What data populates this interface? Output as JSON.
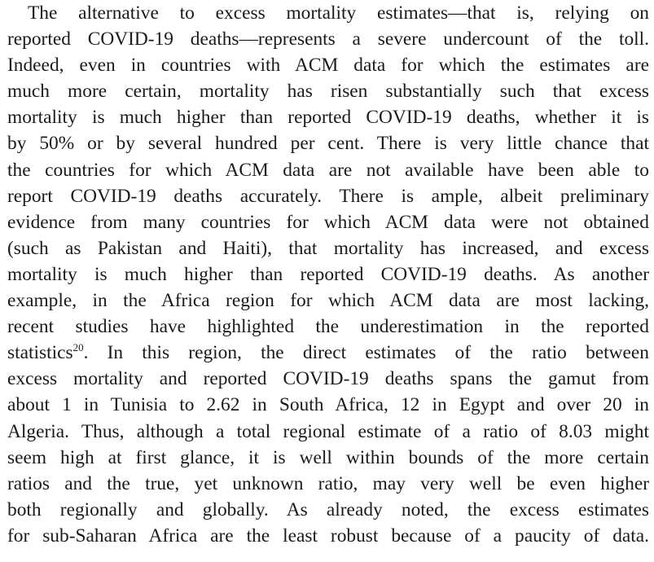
{
  "paragraph": {
    "lines": [
      "The alternative to excess mortality estimates—that is, relying on",
      "reported COVID-19 deaths—represents a severe undercount of the toll.",
      "Indeed, even in countries with ACM data for which the estimates are",
      "much more certain, mortality has risen substantially such that excess",
      "mortality is much higher than reported COVID-19 deaths, whether it is",
      "by 50% or by several hundred per cent. There is very little chance that",
      "the countries for which ACM data are not available have been able to",
      "report COVID-19 deaths accurately. There is ample, albeit preliminary",
      "evidence from many countries for which ACM data were not obtained",
      "(such as Pakistan and Haiti), that mortality has increased, and excess",
      "mortality is much higher than reported COVID-19 deaths. As another",
      "example, in the Africa region for which ACM data are most lacking,",
      "recent studies have highlighted the underestimation in the reported",
      "statistics",
      "20",
      ". In this region, the direct estimates of the ratio between",
      "excess mortality and reported COVID-19 deaths spans the gamut from",
      "about 1 in Tunisia to 2.62 in South Africa, 12 in Egypt and over 20 in",
      "Algeria. Thus, although a total regional estimate of a ratio of 8.03 might",
      "seem high at first glance, it is well within bounds of the more certain",
      "ratios and the true, yet unknown ratio, may very well be even higher",
      "both regionally and globally. As already noted, the excess estimates",
      "for sub-Saharan Africa are the least robust because of a paucity of data."
    ]
  }
}
